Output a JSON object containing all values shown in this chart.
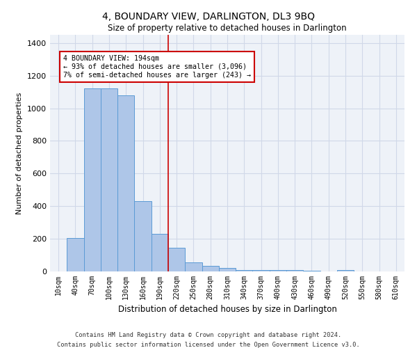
{
  "title": "4, BOUNDARY VIEW, DARLINGTON, DL3 9BQ",
  "subtitle": "Size of property relative to detached houses in Darlington",
  "xlabel": "Distribution of detached houses by size in Darlington",
  "ylabel": "Number of detached properties",
  "categories": [
    "10sqm",
    "40sqm",
    "70sqm",
    "100sqm",
    "130sqm",
    "160sqm",
    "190sqm",
    "220sqm",
    "250sqm",
    "280sqm",
    "310sqm",
    "340sqm",
    "370sqm",
    "400sqm",
    "430sqm",
    "460sqm",
    "490sqm",
    "520sqm",
    "550sqm",
    "580sqm",
    "610sqm"
  ],
  "values": [
    0,
    205,
    1120,
    1120,
    1080,
    430,
    230,
    145,
    55,
    35,
    20,
    10,
    10,
    10,
    10,
    5,
    0,
    10,
    0,
    0,
    0
  ],
  "bar_color": "#aec6e8",
  "bar_edge_color": "#5b9bd5",
  "vline_index": 6,
  "vline_color": "#cc0000",
  "annotation_text": "4 BOUNDARY VIEW: 194sqm\n← 93% of detached houses are smaller (3,096)\n7% of semi-detached houses are larger (243) →",
  "annotation_box_color": "#ffffff",
  "annotation_box_edge": "#cc0000",
  "ylim": [
    0,
    1450
  ],
  "yticks": [
    0,
    200,
    400,
    600,
    800,
    1000,
    1200,
    1400
  ],
  "grid_color": "#d0d8e8",
  "bg_color": "#eef2f8",
  "footer1": "Contains HM Land Registry data © Crown copyright and database right 2024.",
  "footer2": "Contains public sector information licensed under the Open Government Licence v3.0."
}
